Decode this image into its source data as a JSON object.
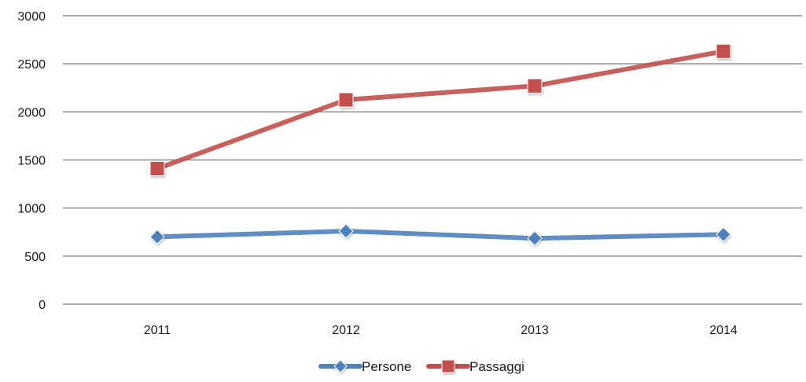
{
  "chart_data": {
    "type": "line",
    "categories": [
      "2011",
      "2012",
      "2013",
      "2014"
    ],
    "series": [
      {
        "name": "Persone",
        "values": [
          700,
          760,
          685,
          725
        ],
        "color": "#4f81bd",
        "marker": "diamond"
      },
      {
        "name": "Passaggi",
        "values": [
          1410,
          2125,
          2270,
          2630
        ],
        "color": "#c0504d",
        "marker": "square"
      }
    ],
    "y_ticks": [
      "0",
      "500",
      "1000",
      "1500",
      "2000",
      "2500",
      "3000"
    ],
    "ylim": [
      0,
      3000
    ],
    "grid": true,
    "legend_position": "bottom"
  }
}
